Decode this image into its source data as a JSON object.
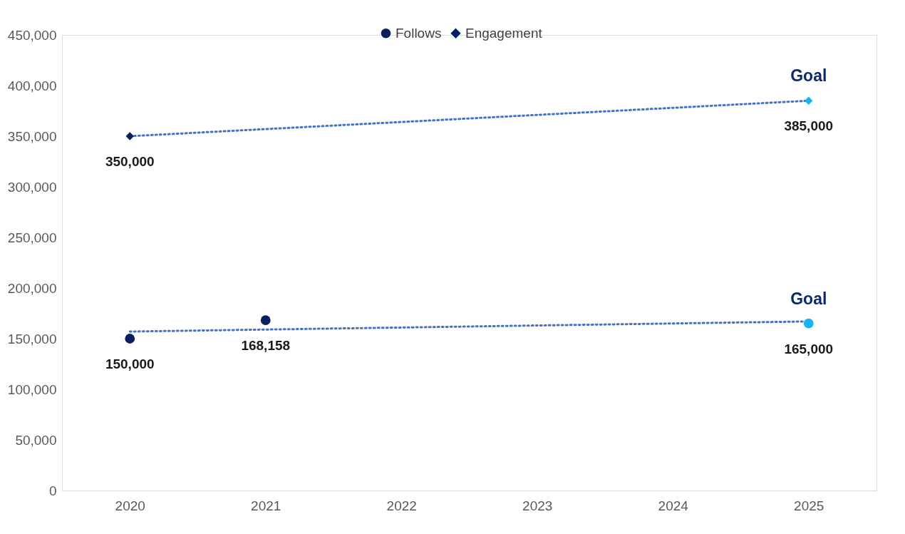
{
  "chart_data": {
    "type": "scatter",
    "categories": [
      "2020",
      "2021",
      "2022",
      "2023",
      "2024",
      "2025"
    ],
    "series": [
      {
        "name": "Follows",
        "marker": "circle",
        "color": "#0b1f5c",
        "colors": [
          "#0b1f5c",
          "#0b1f5c",
          null,
          null,
          null,
          "#1ab2f0"
        ],
        "values": [
          150000,
          168158,
          null,
          null,
          null,
          165000
        ],
        "value_labels": [
          "150,000",
          "168,158",
          null,
          null,
          null,
          "165,000"
        ]
      },
      {
        "name": "Engagement",
        "marker": "diamond",
        "color": "#0b1f5c",
        "colors": [
          "#0b1f5c",
          null,
          null,
          null,
          null,
          "#1ab2f0"
        ],
        "values": [
          350000,
          null,
          null,
          null,
          null,
          385000
        ],
        "value_labels": [
          "350,000",
          null,
          null,
          null,
          null,
          "385,000"
        ]
      },
      {
        "type": "line",
        "line_style": "dotted",
        "color": "#4472c4",
        "values": [
          157000,
          159000,
          161000,
          163000,
          165000,
          167000
        ]
      },
      {
        "type": "line",
        "line_style": "dotted",
        "color": "#4472c4",
        "values": [
          350000,
          357000,
          364000,
          371000,
          378000,
          385000
        ]
      }
    ],
    "ylim": [
      0,
      450000
    ],
    "yticks": [
      0,
      {
        "value": 50000,
        "label": "50,000"
      },
      {
        "value": 100000,
        "label": "100,000"
      },
      {
        "value": 150000,
        "label": "150,000"
      },
      {
        "value": 200000,
        "label": "200,000"
      },
      {
        "value": 250000,
        "label": "250,000"
      },
      {
        "value": 300000,
        "label": "300,000"
      },
      {
        "value": 350000,
        "label": "350,000"
      },
      {
        "value": 400000,
        "label": "400,000"
      },
      {
        "value": 450000,
        "label": "450,000"
      }
    ],
    "grid": false,
    "legend": "top",
    "annotations": [
      {
        "text": "Goal",
        "x": "2025",
        "y": 385000
      },
      {
        "text": "Goal",
        "x": "2025",
        "y": 165000
      }
    ]
  }
}
